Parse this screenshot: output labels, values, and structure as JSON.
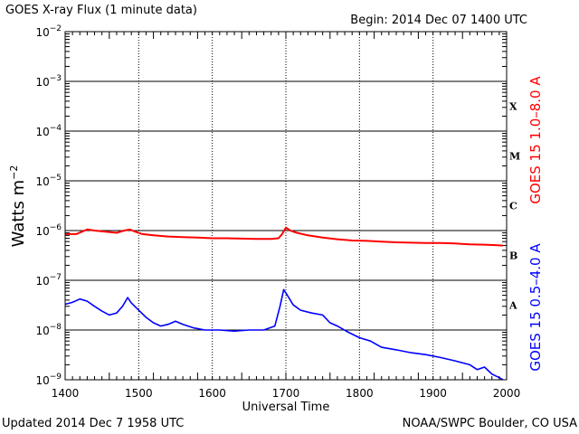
{
  "chart_data": {
    "type": "line",
    "title": "GOES X-ray Flux (1 minute data)",
    "begin_label": "Begin: 2014 Dec 07 1400 UTC",
    "xlabel": "Universal Time",
    "ylabel": {
      "base": "Watts m",
      "exponent": "−2"
    },
    "xlim": [
      1400,
      2000
    ],
    "x_ticks": [
      "1400",
      "1500",
      "1600",
      "1700",
      "1800",
      "1900",
      "2000"
    ],
    "y_scale": "log",
    "ylim": [
      1e-09,
      0.01
    ],
    "y_ticks": [
      {
        "base": "10",
        "exp": "−2"
      },
      {
        "base": "10",
        "exp": "−3"
      },
      {
        "base": "10",
        "exp": "−4"
      },
      {
        "base": "10",
        "exp": "−5"
      },
      {
        "base": "10",
        "exp": "−6"
      },
      {
        "base": "10",
        "exp": "−7"
      },
      {
        "base": "10",
        "exp": "−8"
      },
      {
        "base": "10",
        "exp": "−9"
      }
    ],
    "flare_classes": [
      "X",
      "M",
      "C",
      "B",
      "A"
    ],
    "right_labels": {
      "long": "GOES 15 1.0–8.0 A",
      "short": "GOES 15 0.5–4.0 A"
    },
    "series": [
      {
        "name": "GOES 15 1.0–8.0 A",
        "color": "#ff0000",
        "x": [
          1400,
          1415,
          1430,
          1440,
          1455,
          1470,
          1480,
          1488,
          1495,
          1505,
          1520,
          1540,
          1560,
          1580,
          1600,
          1620,
          1640,
          1660,
          1680,
          1690,
          1695,
          1700,
          1706,
          1715,
          1730,
          1750,
          1770,
          1790,
          1810,
          1830,
          1850,
          1870,
          1890,
          1910,
          1930,
          1950,
          1970,
          1985,
          1995
        ],
        "values": [
          8.5e-07,
          8.5e-07,
          1.05e-06,
          1e-06,
          9.5e-07,
          9e-07,
          1e-06,
          1.05e-06,
          9.5e-07,
          8.5e-07,
          8e-07,
          7.6e-07,
          7.4e-07,
          7.2e-07,
          7e-07,
          7e-07,
          6.9e-07,
          6.8e-07,
          6.8e-07,
          7e-07,
          8.5e-07,
          1.15e-06,
          1e-06,
          9e-07,
          8e-07,
          7.2e-07,
          6.7e-07,
          6.3e-07,
          6.2e-07,
          6e-07,
          5.8e-07,
          5.7e-07,
          5.6e-07,
          5.6e-07,
          5.5e-07,
          5.3e-07,
          5.2e-07,
          5.1e-07,
          5e-07
        ]
      },
      {
        "name": "GOES 15 0.5–4.0 A",
        "color": "#0000ff",
        "x": [
          1400,
          1410,
          1420,
          1430,
          1440,
          1450,
          1460,
          1470,
          1478,
          1485,
          1490,
          1500,
          1510,
          1520,
          1530,
          1540,
          1550,
          1560,
          1575,
          1590,
          1610,
          1630,
          1650,
          1670,
          1685,
          1692,
          1697,
          1702,
          1710,
          1720,
          1735,
          1750,
          1760,
          1770,
          1785,
          1800,
          1815,
          1830,
          1850,
          1870,
          1890,
          1910,
          1930,
          1950,
          1960,
          1970,
          1980,
          1990,
          1995
        ],
        "values": [
          3.3e-08,
          3.6e-08,
          4.2e-08,
          3.8e-08,
          3e-08,
          2.4e-08,
          2e-08,
          2.2e-08,
          3e-08,
          4.5e-08,
          3.5e-08,
          2.5e-08,
          1.8e-08,
          1.4e-08,
          1.2e-08,
          1.3e-08,
          1.5e-08,
          1.3e-08,
          1.1e-08,
          1e-08,
          1e-08,
          9.5e-09,
          1e-08,
          1e-08,
          1.2e-08,
          3e-08,
          6.5e-08,
          5e-08,
          3.2e-08,
          2.5e-08,
          2.2e-08,
          2e-08,
          1.4e-08,
          1.2e-08,
          9e-09,
          7e-09,
          6e-09,
          4.5e-09,
          4e-09,
          3.5e-09,
          3.2e-09,
          2.8e-09,
          2.4e-09,
          2e-09,
          1.6e-09,
          1.8e-09,
          1.3e-09,
          1.1e-09,
          1e-09
        ]
      }
    ],
    "grid": "horizontal lines at each decade, dotted verticals each hour"
  },
  "footer": {
    "updated": "Updated 2014 Dec  7 1958 UTC",
    "credit": "NOAA/SWPC Boulder, CO USA"
  }
}
